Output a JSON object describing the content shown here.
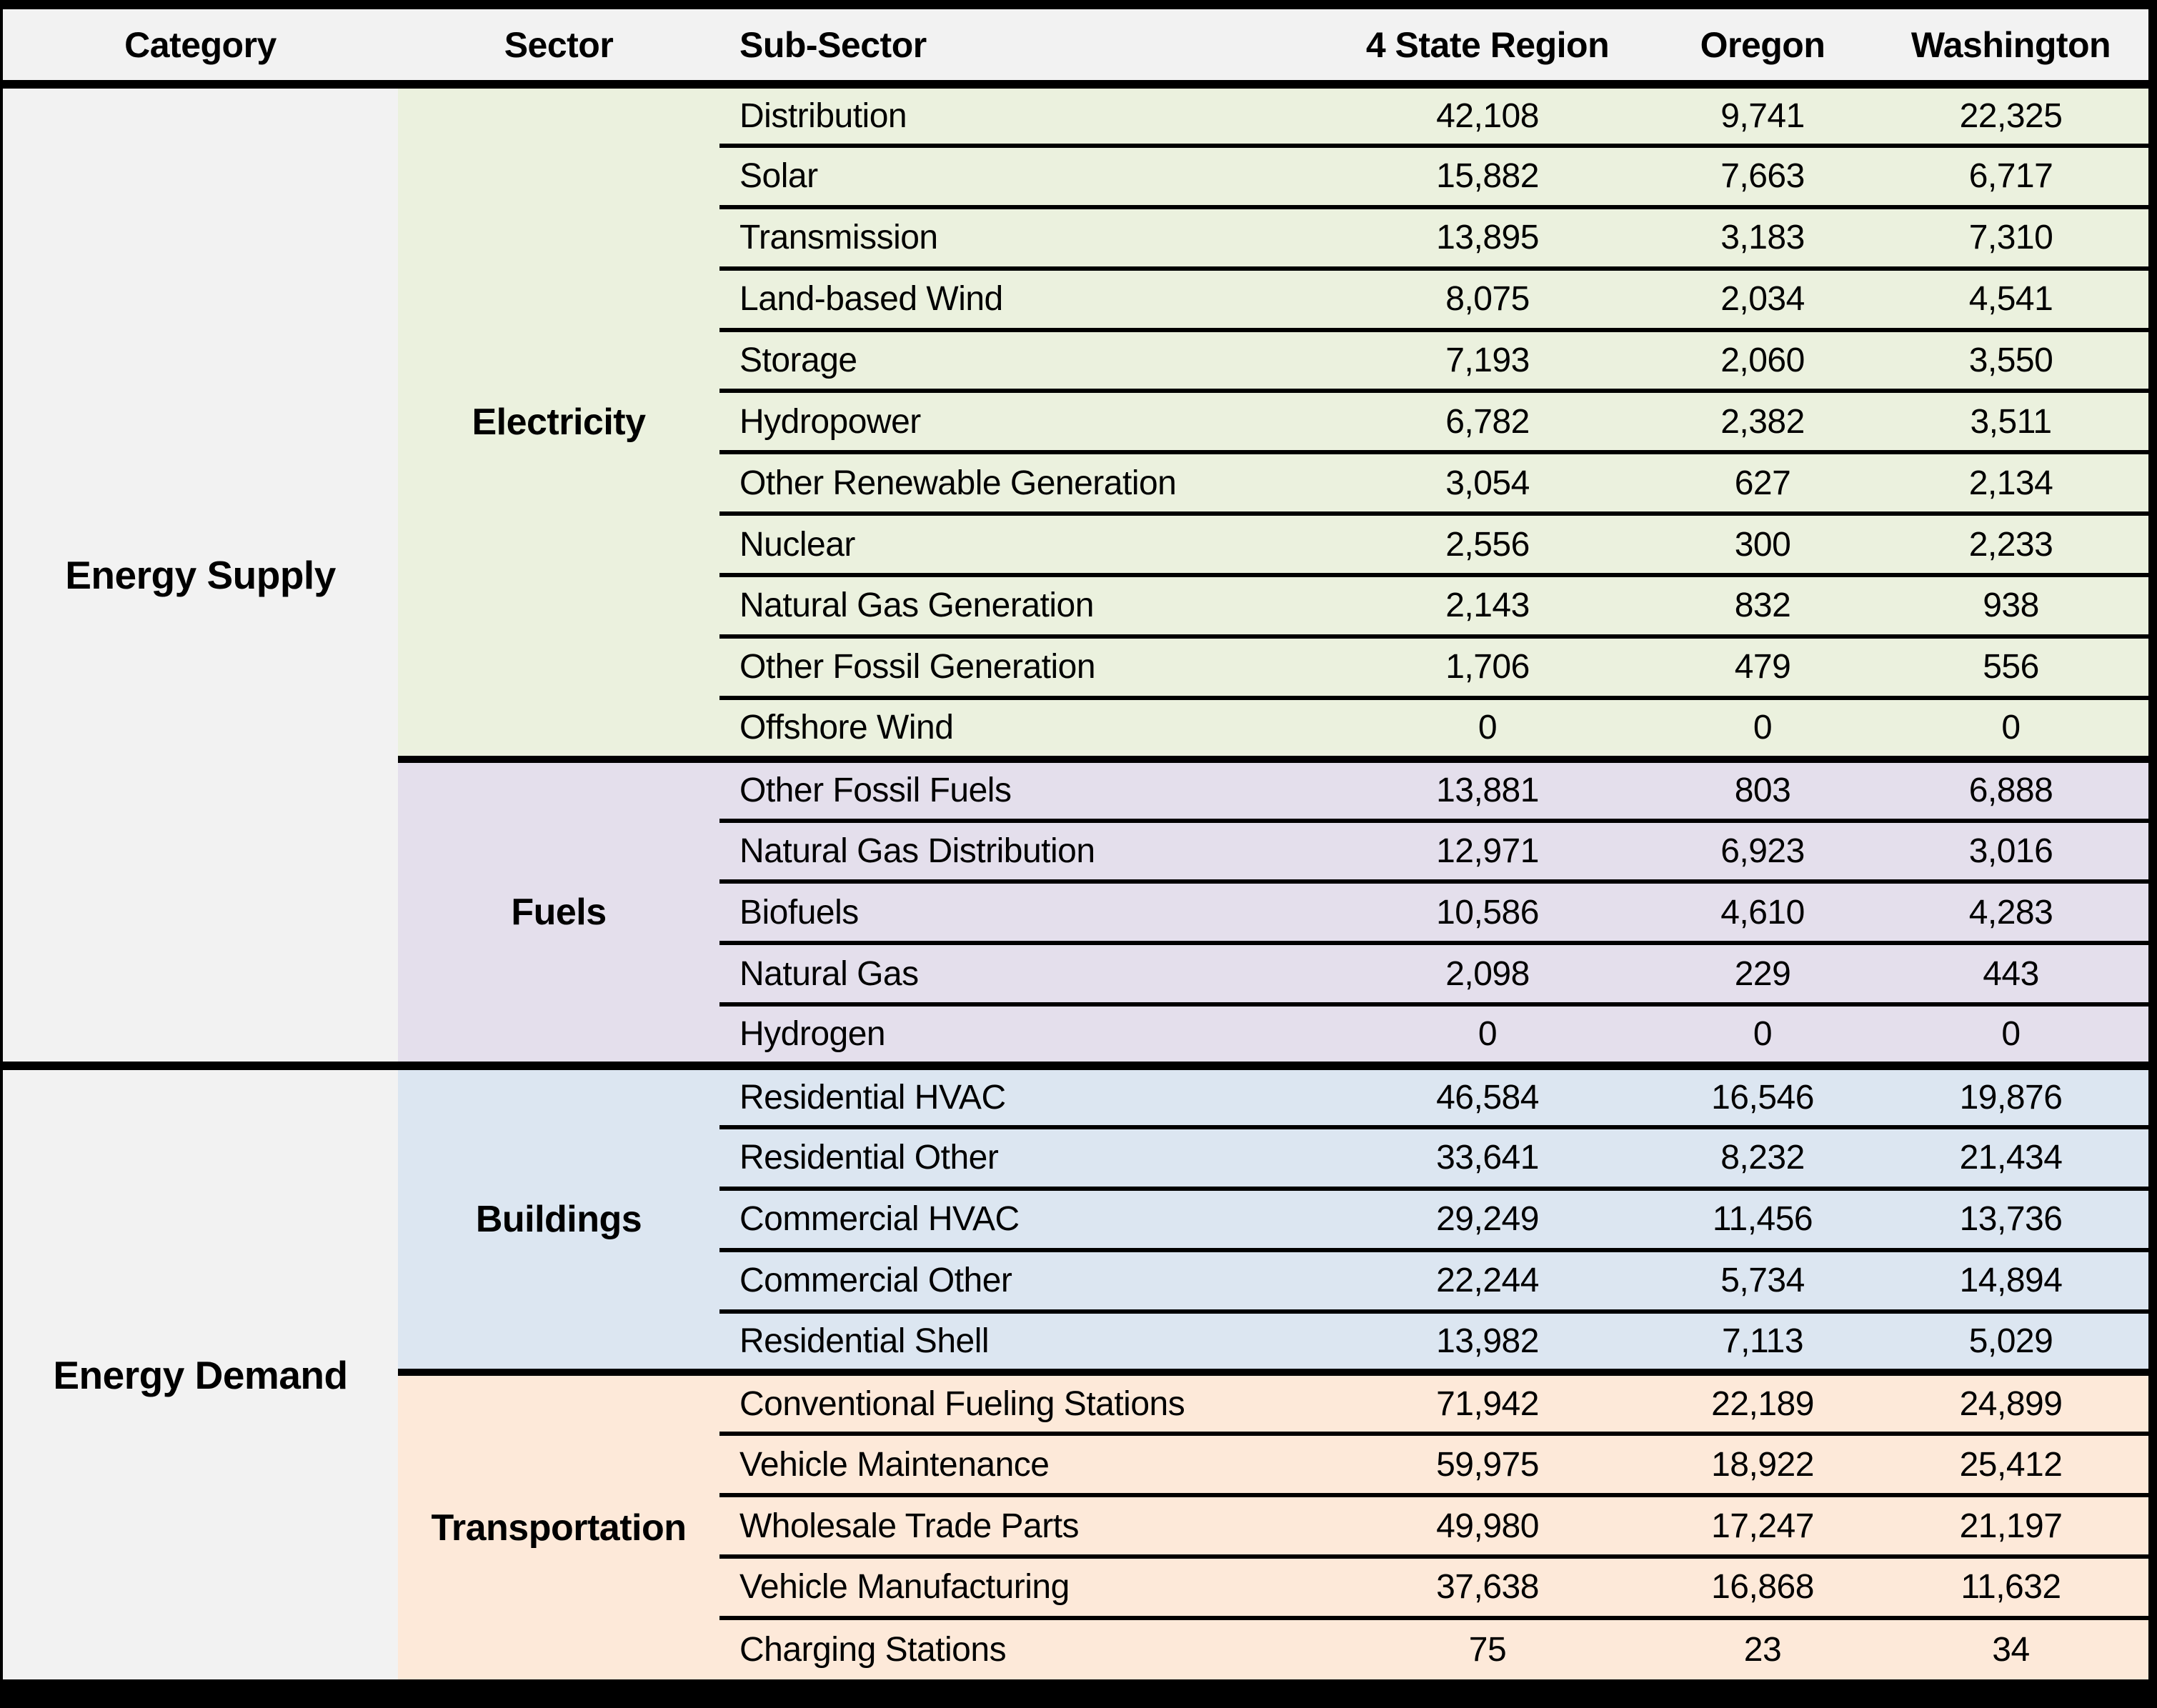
{
  "table": {
    "columns": [
      "Category",
      "Sector",
      "Sub-Sector",
      "4 State Region",
      "Oregon",
      "Washington"
    ],
    "header_bg": "#F2F2F2",
    "category_bg": "#F2F2F2",
    "border_color": "#000000",
    "categories": [
      {
        "name": "Energy Supply",
        "sectors": [
          {
            "name": "Electricity",
            "color": "#EBF1DE",
            "rows": [
              [
                "Distribution",
                "42,108",
                "9,741",
                "22,325"
              ],
              [
                "Solar",
                "15,882",
                "7,663",
                "6,717"
              ],
              [
                "Transmission",
                "13,895",
                "3,183",
                "7,310"
              ],
              [
                "Land-based Wind",
                "8,075",
                "2,034",
                "4,541"
              ],
              [
                "Storage",
                "7,193",
                "2,060",
                "3,550"
              ],
              [
                "Hydropower",
                "6,782",
                "2,382",
                "3,511"
              ],
              [
                "Other Renewable Generation",
                "3,054",
                "627",
                "2,134"
              ],
              [
                "Nuclear",
                "2,556",
                "300",
                "2,233"
              ],
              [
                "Natural Gas Generation",
                "2,143",
                "832",
                "938"
              ],
              [
                "Other Fossil Generation",
                "1,706",
                "479",
                "556"
              ],
              [
                "Offshore Wind",
                "0",
                "0",
                "0"
              ]
            ]
          },
          {
            "name": "Fuels",
            "color": "#E4DFEC",
            "rows": [
              [
                "Other Fossil Fuels",
                "13,881",
                "803",
                "6,888"
              ],
              [
                "Natural Gas Distribution",
                "12,971",
                "6,923",
                "3,016"
              ],
              [
                "Biofuels",
                "10,586",
                "4,610",
                "4,283"
              ],
              [
                "Natural Gas",
                "2,098",
                "229",
                "443"
              ],
              [
                "Hydrogen",
                "0",
                "0",
                "0"
              ]
            ]
          }
        ]
      },
      {
        "name": "Energy Demand",
        "sectors": [
          {
            "name": "Buildings",
            "color": "#DCE6F1",
            "rows": [
              [
                "Residential HVAC",
                "46,584",
                "16,546",
                "19,876"
              ],
              [
                "Residential Other",
                "33,641",
                "8,232",
                "21,434"
              ],
              [
                "Commercial HVAC",
                "29,249",
                "11,456",
                "13,736"
              ],
              [
                "Commercial Other",
                "22,244",
                "5,734",
                "14,894"
              ],
              [
                "Residential Shell",
                "13,982",
                "7,113",
                "5,029"
              ]
            ]
          },
          {
            "name": "Transportation",
            "color": "#FDE9D9",
            "rows": [
              [
                "Conventional Fueling Stations",
                "71,942",
                "22,189",
                "24,899"
              ],
              [
                "Vehicle Maintenance",
                "59,975",
                "18,922",
                "25,412"
              ],
              [
                "Wholesale Trade Parts",
                "49,980",
                "17,247",
                "21,197"
              ],
              [
                "Vehicle Manufacturing",
                "37,638",
                "16,868",
                "11,632"
              ],
              [
                "Charging Stations",
                "75",
                "23",
                "34"
              ]
            ]
          }
        ]
      }
    ]
  }
}
